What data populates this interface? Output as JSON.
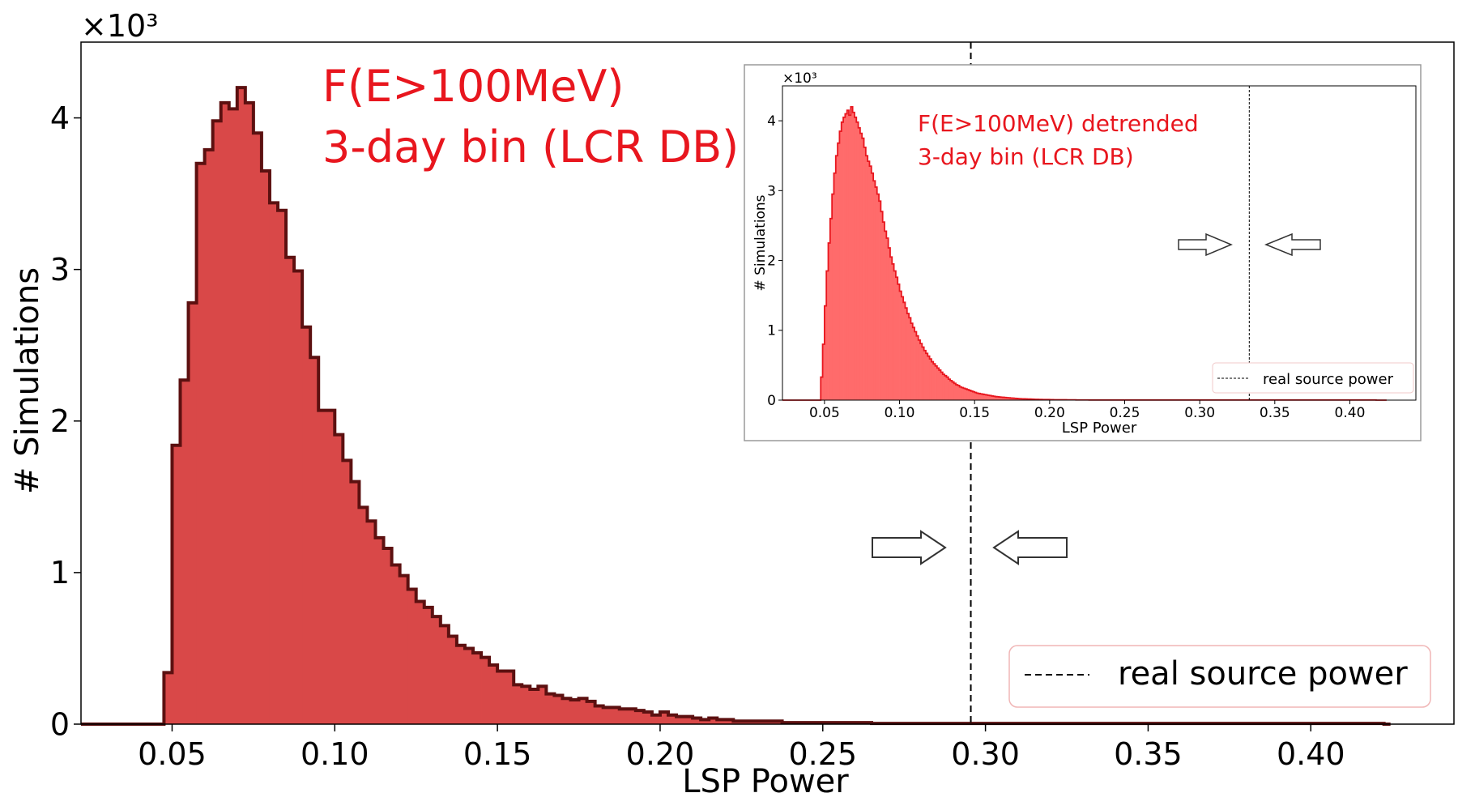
{
  "main": {
    "title_lines": [
      "F(E>100MeV)",
      "3-day bin (LCR DB)"
    ],
    "xlabel": "LSP Power",
    "ylabel": "# Simulations",
    "exponent_label": "×10³",
    "legend_label": "real source power",
    "colors": {
      "fill": "#d94848",
      "edge": "#5c1010",
      "title": "#e8161e"
    }
  },
  "inset": {
    "title_lines": [
      "F(E>100MeV) detrended",
      "3-day bin (LCR DB)"
    ],
    "xlabel": "LSP Power",
    "ylabel": "# Simulations",
    "exponent_label": "×10³",
    "legend_label": "real source power",
    "colors": {
      "fill": "#ff6b6b",
      "edge": "#e8161e",
      "title": "#e8161e"
    }
  },
  "chart_data": [
    {
      "type": "bar",
      "name": "main-histogram",
      "title": "F(E>100MeV) 3-day bin (LCR DB)",
      "xlabel": "LSP Power",
      "ylabel": "# Simulations",
      "y_multiplier": 1000,
      "xlim": [
        0.022,
        0.444
      ],
      "ylim": [
        0,
        4.5
      ],
      "xticks": [
        0.05,
        0.1,
        0.15,
        0.2,
        0.25,
        0.3,
        0.35,
        0.4
      ],
      "xtick_labels": [
        "0.05",
        "0.10",
        "0.15",
        "0.20",
        "0.25",
        "0.30",
        "0.35",
        "0.40"
      ],
      "yticks": [
        0,
        1,
        2,
        3,
        4
      ],
      "ytick_labels": [
        "0",
        "1",
        "2",
        "3",
        "4"
      ],
      "bin_start": 0.0475,
      "bin_width": 0.0025,
      "baseline_x": [
        0.022,
        0.4245
      ],
      "values": [
        0.34,
        1.84,
        2.27,
        2.78,
        3.7,
        3.79,
        3.98,
        4.1,
        4.06,
        4.2,
        4.1,
        3.9,
        3.65,
        3.44,
        3.39,
        3.08,
        2.99,
        2.62,
        2.42,
        2.07,
        2.07,
        1.91,
        1.74,
        1.6,
        1.43,
        1.34,
        1.23,
        1.16,
        1.05,
        0.98,
        0.89,
        0.81,
        0.77,
        0.71,
        0.65,
        0.58,
        0.52,
        0.5,
        0.47,
        0.44,
        0.39,
        0.35,
        0.35,
        0.26,
        0.25,
        0.23,
        0.25,
        0.2,
        0.19,
        0.17,
        0.16,
        0.17,
        0.15,
        0.12,
        0.11,
        0.11,
        0.1,
        0.1,
        0.09,
        0.08,
        0.06,
        0.08,
        0.06,
        0.05,
        0.05,
        0.04,
        0.03,
        0.04,
        0.03,
        0.03,
        0.02,
        0.02,
        0.02,
        0.02,
        0.02,
        0.02,
        0.01,
        0.01,
        0.01,
        0.01,
        0.01,
        0.01,
        0.01,
        0.01,
        0.01,
        0.01,
        0.01,
        0.005,
        0.005,
        0.005,
        0.005,
        0.005,
        0.005,
        0.005,
        0.005,
        0.005,
        0.005,
        0.005,
        0.005,
        0.005,
        0.005,
        0.005,
        0.005,
        0.005,
        0.005,
        0.005,
        0.005,
        0.005,
        0.005,
        0.005,
        0.005,
        0.005,
        0.005,
        0.005,
        0.005,
        0.005,
        0.005,
        0.005,
        0.005,
        0.005,
        0.005,
        0.005,
        0.005,
        0.005,
        0.005,
        0.005,
        0.005,
        0.005,
        0.005,
        0.005,
        0.005,
        0.005,
        0.005,
        0.005,
        0.005,
        0.005,
        0.005,
        0.005,
        0.005,
        0.005,
        0.005,
        0.005,
        0.005,
        0.005,
        0.005,
        0.005,
        0.005,
        0.005,
        0.005,
        0.005
      ],
      "real_source_power": 0.2955,
      "legend": {
        "label": "real source power",
        "location": "lower-right"
      }
    },
    {
      "type": "bar",
      "name": "inset-histogram",
      "title": "F(E>100MeV) detrended 3-day bin (LCR DB)",
      "xlabel": "LSP Power",
      "ylabel": "# Simulations",
      "y_multiplier": 1000,
      "xlim": [
        0.022,
        0.444
      ],
      "ylim": [
        0,
        4.5
      ],
      "xticks": [
        0.05,
        0.1,
        0.15,
        0.2,
        0.25,
        0.3,
        0.35,
        0.4
      ],
      "xtick_labels": [
        "0.05",
        "0.10",
        "0.15",
        "0.20",
        "0.25",
        "0.30",
        "0.35",
        "0.40"
      ],
      "yticks": [
        0,
        1,
        2,
        3,
        4
      ],
      "ytick_labels": [
        "0",
        "1",
        "2",
        "3",
        "4"
      ],
      "bin_start": 0.0475,
      "bin_width": 0.00125,
      "baseline_x": [
        0.022,
        0.4245
      ],
      "values": [
        0.33,
        0.8,
        1.35,
        1.85,
        2.25,
        2.6,
        2.95,
        3.25,
        3.5,
        3.68,
        3.85,
        3.98,
        4.05,
        4.1,
        4.15,
        4.08,
        4.2,
        4.12,
        4.05,
        3.98,
        3.9,
        3.82,
        3.75,
        3.62,
        3.5,
        3.42,
        3.35,
        3.25,
        3.14,
        3.05,
        2.95,
        2.85,
        2.7,
        2.55,
        2.42,
        2.32,
        2.18,
        2.05,
        1.95,
        1.85,
        1.76,
        1.66,
        1.56,
        1.48,
        1.4,
        1.32,
        1.24,
        1.18,
        1.1,
        1.04,
        0.98,
        0.92,
        0.86,
        0.81,
        0.76,
        0.71,
        0.67,
        0.63,
        0.59,
        0.55,
        0.52,
        0.49,
        0.46,
        0.43,
        0.4,
        0.37,
        0.35,
        0.33,
        0.3,
        0.28,
        0.26,
        0.24,
        0.22,
        0.21,
        0.19,
        0.18,
        0.17,
        0.16,
        0.15,
        0.14,
        0.13,
        0.12,
        0.11,
        0.1,
        0.095,
        0.09,
        0.085,
        0.08,
        0.075,
        0.07,
        0.065,
        0.06,
        0.055,
        0.05,
        0.048,
        0.045,
        0.042,
        0.04,
        0.038,
        0.035,
        0.033,
        0.03,
        0.028,
        0.026,
        0.024,
        0.022,
        0.02,
        0.019,
        0.018,
        0.017,
        0.016,
        0.015,
        0.014,
        0.013,
        0.012,
        0.011,
        0.01,
        0.01,
        0.009,
        0.009,
        0.008,
        0.008,
        0.007,
        0.007,
        0.006,
        0.006,
        0.006,
        0.005,
        0.005,
        0.005,
        0.005,
        0.004,
        0.004,
        0.004,
        0.004,
        0.004,
        0.003,
        0.003,
        0.003,
        0.003,
        0.003,
        0.003,
        0.003,
        0.002,
        0.002,
        0.002,
        0.002,
        0.002,
        0.002,
        0.002,
        0.002,
        0.002,
        0.002,
        0.002,
        0.002,
        0.002,
        0.002,
        0.002,
        0.002,
        0.002,
        0.002,
        0.002,
        0.002,
        0.002,
        0.002,
        0.002,
        0.002,
        0.002,
        0.002,
        0.002,
        0.002,
        0.002,
        0.002,
        0.002,
        0.002,
        0.002,
        0.002,
        0.002,
        0.002,
        0.002,
        0.002,
        0.002,
        0.002,
        0.002,
        0.002,
        0.002,
        0.002,
        0.002,
        0.002,
        0.002,
        0.002,
        0.002,
        0.002,
        0.002,
        0.002,
        0.002,
        0.002,
        0.002,
        0.002,
        0.002,
        0.002,
        0.002,
        0.002,
        0.002,
        0.002,
        0.002,
        0.002,
        0.002,
        0.002,
        0.002,
        0.002,
        0.002,
        0.002,
        0.002,
        0.002,
        0.002,
        0.002,
        0.002,
        0.002,
        0.002,
        0.002,
        0.002,
        0.002,
        0.002,
        0.002,
        0.002,
        0.002,
        0.002,
        0.002,
        0.002,
        0.002,
        0.002,
        0.002,
        0.002,
        0.002,
        0.002,
        0.002,
        0.002,
        0.002,
        0.002,
        0.002,
        0.002,
        0.002,
        0.002,
        0.002,
        0.002,
        0.002,
        0.002,
        0.002,
        0.002,
        0.002,
        0.002,
        0.002,
        0.002,
        0.002,
        0.002,
        0.002,
        0.002,
        0.002,
        0.002,
        0.002,
        0.002,
        0.002,
        0.002,
        0.002,
        0.002,
        0.002,
        0.002,
        0.002,
        0.002,
        0.002,
        0.002,
        0.002,
        0.002,
        0.002,
        0.002,
        0.002,
        0.002,
        0.002,
        0.002,
        0.002,
        0.002,
        0.002,
        0.002,
        0.002,
        0.002,
        0.002,
        0.002,
        0.002,
        0.002,
        0.002,
        0.002,
        0.002,
        0.002,
        0.002,
        0.002
      ],
      "real_source_power": 0.333,
      "legend": {
        "label": "real source power",
        "location": "lower-right"
      }
    }
  ]
}
